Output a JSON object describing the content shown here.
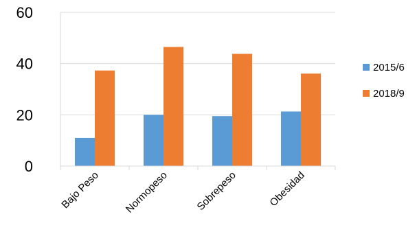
{
  "chart_data": {
    "type": "bar",
    "title": "",
    "xlabel": "",
    "ylabel": "",
    "categories": [
      "Bajo Peso",
      "Normopeso",
      "Sobrepeso",
      "Obesidad"
    ],
    "series": [
      {
        "name": "2015/6",
        "values": [
          11,
          20,
          19.5,
          21.3
        ],
        "color": "#5B9BD5"
      },
      {
        "name": "2018/9",
        "values": [
          37.3,
          46.5,
          43.8,
          36.1
        ],
        "color": "#ED7D31"
      }
    ],
    "ylim": [
      0,
      60
    ],
    "yticks": [
      0,
      20,
      40,
      60
    ],
    "grid": true,
    "legend_position": "right"
  }
}
